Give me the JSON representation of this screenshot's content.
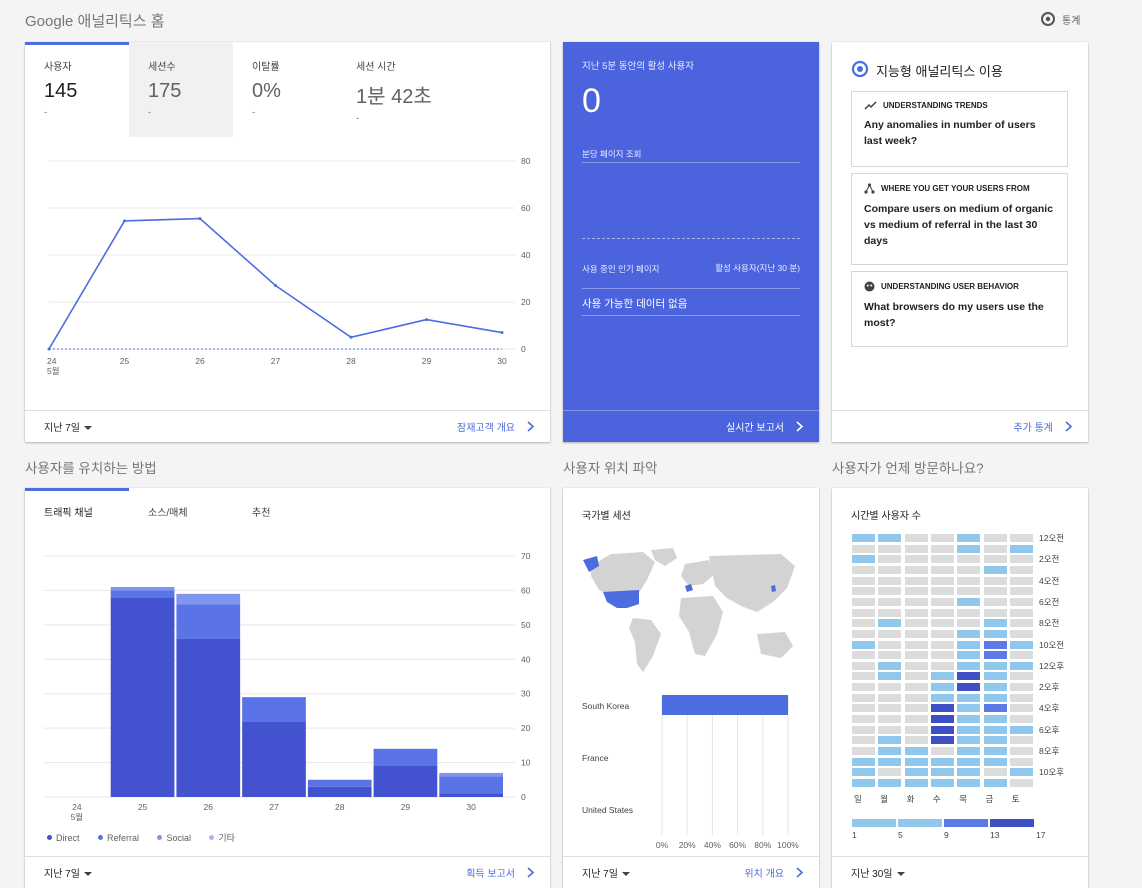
{
  "header": {
    "title": "Google 애널리틱스 홈",
    "insights_label": "통계"
  },
  "overview": {
    "tabs": [
      {
        "label": "사용자",
        "value": "145",
        "sub": "-"
      },
      {
        "label": "세션수",
        "value": "175",
        "sub": "-"
      },
      {
        "label": "이탈률",
        "value": "0%",
        "sub": "-"
      },
      {
        "label": "세션 시간",
        "value": "1분 42초",
        "sub": "-"
      }
    ],
    "footer_range": "지난 7일",
    "footer_link": "잠재고객 개요",
    "chart_data": {
      "type": "line",
      "series": [
        {
          "values": [
            0,
            54.5,
            55.5,
            27,
            5,
            12.5,
            7
          ]
        }
      ],
      "x": [
        "24",
        "25",
        "26",
        "27",
        "28",
        "29",
        "30"
      ],
      "x_sublabel": "5월",
      "ylim": [
        0,
        80
      ],
      "yticks": [
        0,
        20,
        40,
        60,
        80
      ],
      "grid": true,
      "color": "#4b6de0"
    }
  },
  "realtime": {
    "title": "지난 5분 동안의 활성 사용자",
    "value": "0",
    "pageviews_label": "분당 페이지 조회",
    "col_left": "사용 중인 인기 페이지",
    "col_right": "활성 사용자(지난 30 분)",
    "empty": "사용 가능한 데이터 없음",
    "footer_link": "실시간 보고서"
  },
  "intelligence": {
    "title": "지능형 애널리틱스 이용",
    "cards": [
      {
        "head": "UNDERSTANDING TRENDS",
        "q": "Any anomalies in number of users last week?"
      },
      {
        "head": "WHERE YOU GET YOUR USERS FROM",
        "q": "Compare users on medium of organic vs medium of referral in the last 30 days"
      },
      {
        "head": "UNDERSTANDING USER BEHAVIOR",
        "q": "What browsers do my users use the most?"
      }
    ],
    "footer_link": "추가 통계"
  },
  "acquisition": {
    "section_title": "사용자를 유치하는 방법",
    "tabs": [
      "트래픽 채널",
      "소스/매체",
      "추천"
    ],
    "footer_range": "지난 7일",
    "footer_link": "획득 보고서",
    "chart_data": {
      "type": "bar",
      "stacked": true,
      "categories": [
        "24",
        "25",
        "26",
        "27",
        "28",
        "29",
        "30"
      ],
      "x_sublabel": "5월",
      "ylim": [
        0,
        70
      ],
      "yticks": [
        0,
        10,
        20,
        30,
        40,
        50,
        60,
        70
      ],
      "series": [
        {
          "name": "Direct",
          "color": "#4353cf",
          "values": [
            0,
            58,
            46,
            22,
            3,
            9,
            1
          ]
        },
        {
          "name": "Referral",
          "color": "#5a74e8",
          "values": [
            0,
            2,
            10,
            7,
            2,
            5,
            5
          ]
        },
        {
          "name": "Social",
          "color": "#7f95ee",
          "values": [
            0,
            1,
            3,
            0,
            0,
            0,
            1
          ]
        },
        {
          "name": "기타",
          "color": "#a7b7f5",
          "values": [
            0,
            0,
            0,
            0,
            0,
            0,
            0
          ]
        }
      ]
    }
  },
  "geo": {
    "section_title": "사용자 위치 파악",
    "card_title": "국가별 세션",
    "footer_range": "지난 7일",
    "footer_link": "위치 개요",
    "chart_data": {
      "type": "bar",
      "orientation": "horizontal",
      "categories": [
        "South Korea",
        "France",
        "United States"
      ],
      "values": [
        100,
        0,
        0
      ],
      "xticks": [
        "0%",
        "20%",
        "40%",
        "60%",
        "80%",
        "100%"
      ],
      "color": "#4b6de0"
    }
  },
  "time": {
    "section_title": "사용자가 언제 방문하나요?",
    "card_title": "시간별 사용자 수",
    "footer_range": "지난 30일",
    "hour_labels": [
      "12오전",
      "2오전",
      "4오전",
      "6오전",
      "8오전",
      "10오전",
      "12오후",
      "2오후",
      "4오후",
      "6오후",
      "8오후",
      "10오후"
    ],
    "day_labels": [
      "일",
      "월",
      "화",
      "수",
      "목",
      "금",
      "토"
    ],
    "legend_values": [
      "1",
      "5",
      "9",
      "13",
      "17"
    ],
    "colors": [
      "#dcdcdc",
      "#8fc8ea",
      "#5b7ae8",
      "#3f4fc4"
    ],
    "chart_data": {
      "type": "heatmap",
      "rows": "24 hours (12오전 at top)",
      "cols": [
        "일",
        "월",
        "화",
        "수",
        "목",
        "금",
        "토"
      ],
      "levels": [
        [
          1,
          1,
          0,
          0,
          1,
          0,
          0
        ],
        [
          0,
          0,
          0,
          0,
          1,
          0,
          1
        ],
        [
          1,
          0,
          0,
          0,
          0,
          0,
          0
        ],
        [
          0,
          0,
          0,
          0,
          0,
          1,
          0
        ],
        [
          0,
          0,
          0,
          0,
          0,
          0,
          0
        ],
        [
          0,
          0,
          0,
          0,
          0,
          0,
          0
        ],
        [
          0,
          0,
          0,
          0,
          1,
          0,
          0
        ],
        [
          0,
          0,
          0,
          0,
          0,
          0,
          0
        ],
        [
          0,
          1,
          0,
          0,
          0,
          1,
          0
        ],
        [
          0,
          0,
          0,
          0,
          1,
          1,
          0
        ],
        [
          1,
          0,
          0,
          0,
          1,
          2,
          1
        ],
        [
          0,
          0,
          0,
          0,
          1,
          2,
          0
        ],
        [
          0,
          1,
          0,
          0,
          1,
          1,
          1
        ],
        [
          0,
          1,
          0,
          1,
          3,
          1,
          0
        ],
        [
          0,
          0,
          0,
          1,
          3,
          1,
          0
        ],
        [
          0,
          0,
          0,
          1,
          1,
          1,
          0
        ],
        [
          0,
          0,
          0,
          3,
          1,
          2,
          0
        ],
        [
          0,
          0,
          0,
          3,
          1,
          1,
          0
        ],
        [
          0,
          0,
          0,
          3,
          1,
          1,
          1
        ],
        [
          0,
          1,
          0,
          3,
          1,
          1,
          0
        ],
        [
          0,
          1,
          1,
          0,
          1,
          1,
          0
        ],
        [
          1,
          1,
          1,
          1,
          1,
          1,
          0
        ],
        [
          1,
          0,
          1,
          1,
          1,
          0,
          1
        ],
        [
          1,
          1,
          1,
          1,
          1,
          1,
          0
        ]
      ]
    }
  }
}
